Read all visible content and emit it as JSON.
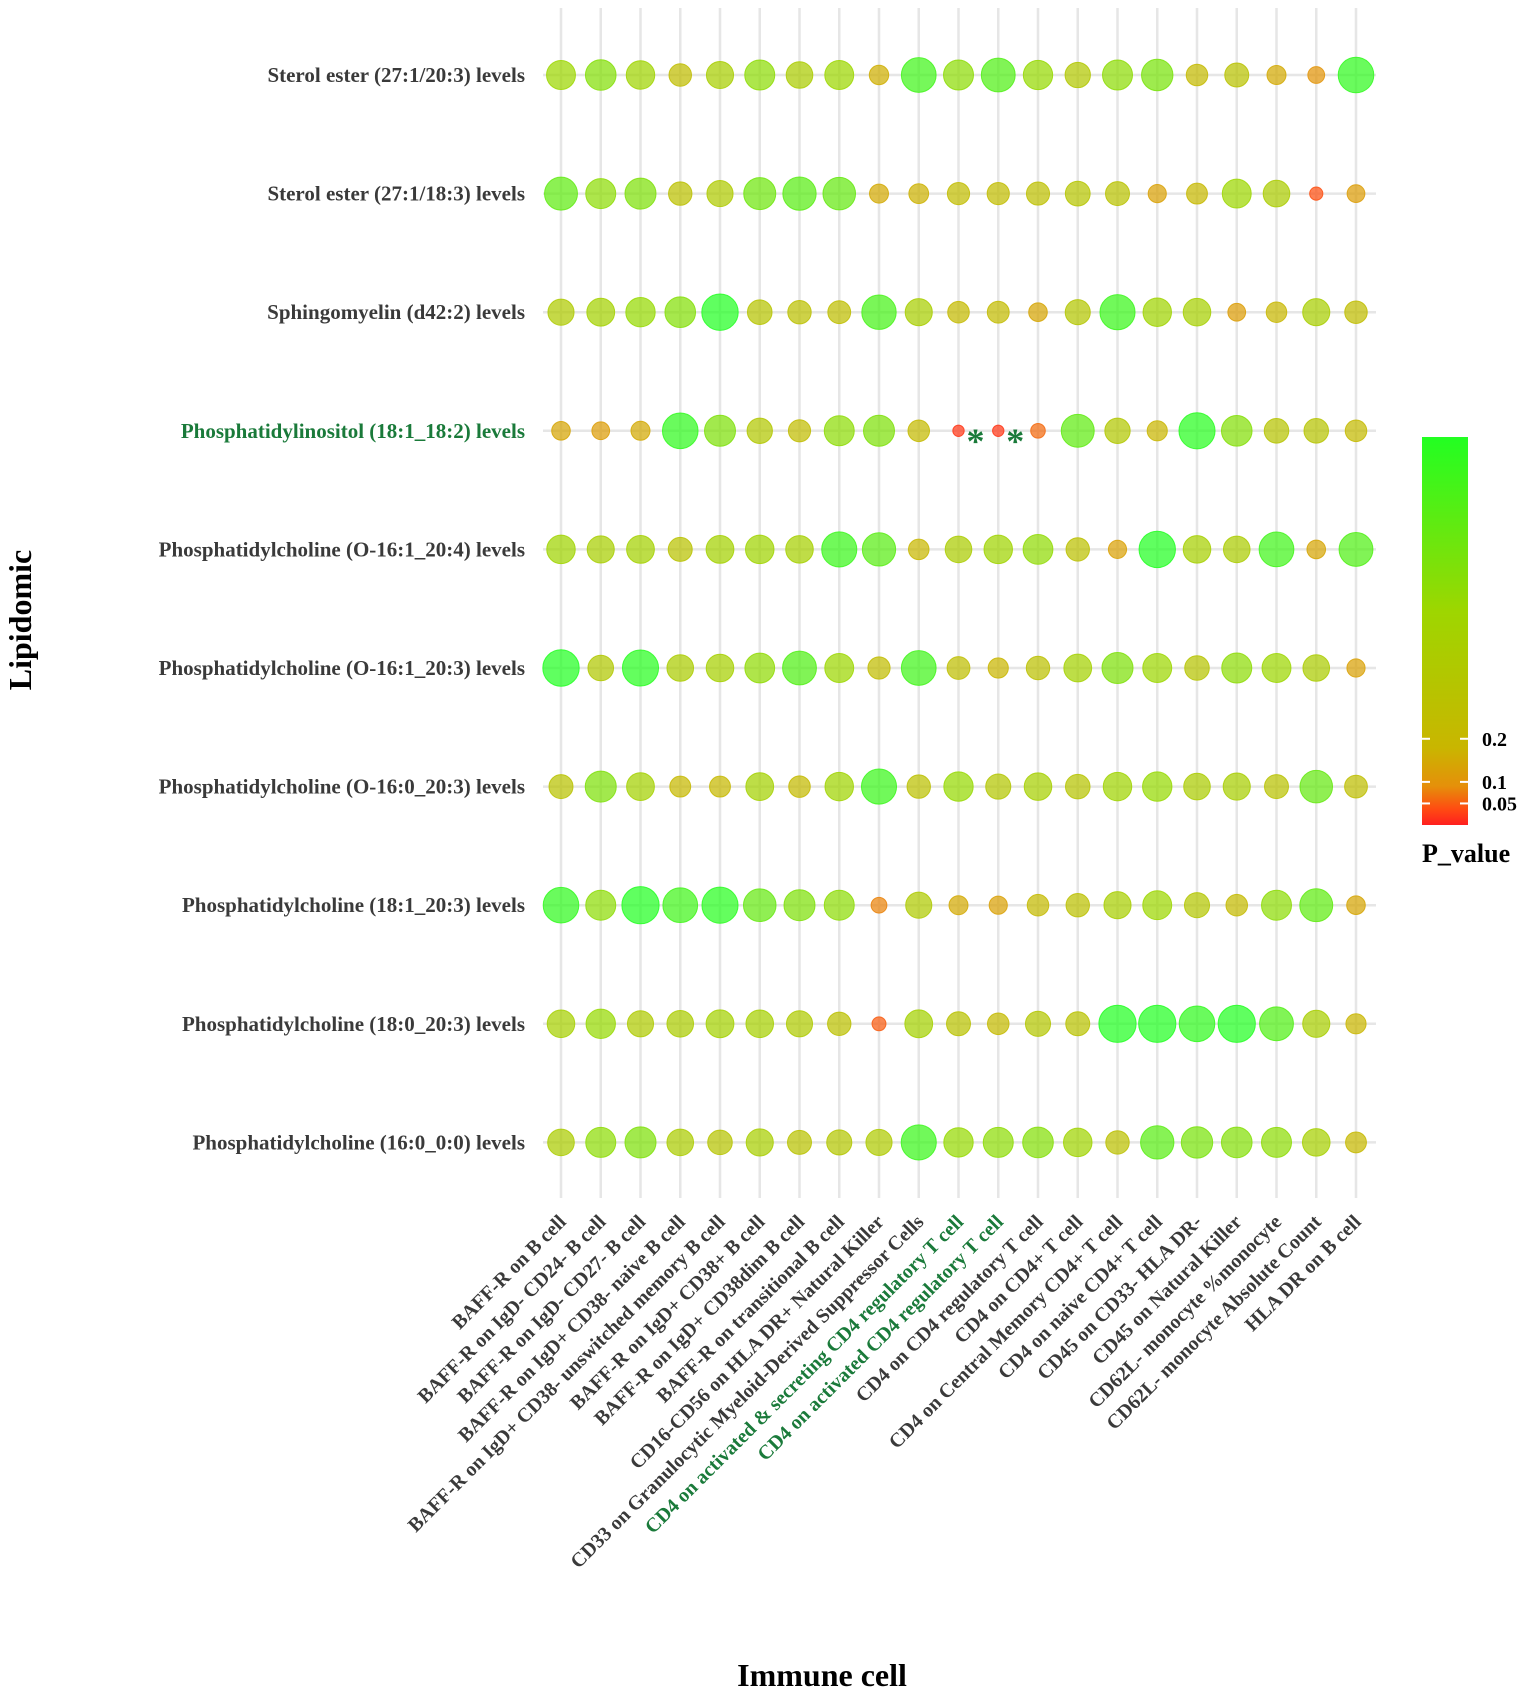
{
  "chart_data": {
    "type": "bubble",
    "xlabel": "Immune cell",
    "ylabel": "Lipidomic",
    "legend": {
      "title": "P_value",
      "ticks": [
        "0.2",
        "0.1",
        "0.05"
      ],
      "tick_values": [
        0.2,
        0.1,
        0.05
      ],
      "range": [
        0.0,
        0.9
      ],
      "colors": {
        "low": "#ff2a1a",
        "mid": "#c9b600",
        "high": "#22ff22"
      },
      "placement": "right"
    },
    "significance_marker": "*",
    "highlight_color": "#1a7a3a",
    "rows": [
      "Sterol ester (27:1/20:3) levels",
      "Sterol ester (27:1/18:3) levels",
      "Sphingomyelin (d42:2) levels",
      "Phosphatidylinositol (18:1_18:2) levels",
      "Phosphatidylcholine (O-16:1_20:4) levels",
      "Phosphatidylcholine (O-16:1_20:3) levels",
      "Phosphatidylcholine (O-16:0_20:3) levels",
      "Phosphatidylcholine (18:1_20:3) levels",
      "Phosphatidylcholine (18:0_20:3) levels",
      "Phosphatidylcholine (16:0_0:0) levels"
    ],
    "highlighted_rows": [
      "Phosphatidylinositol (18:1_18:2) levels"
    ],
    "columns": [
      "BAFF-R on B cell",
      "BAFF-R on IgD- CD24- B cell",
      "BAFF-R on IgD- CD27- B cell",
      "BAFF-R on IgD+ CD38- naive B cell",
      "BAFF-R on IgD+ CD38- unswitched memory B cell",
      "BAFF-R on IgD+ CD38+ B cell",
      "BAFF-R on IgD+ CD38dim B cell",
      "BAFF-R on transitional B cell",
      "CD16-CD56 on HLA DR+ Natural Killer",
      "CD33 on Granulocytic Myeloid-Derived Suppressor Cells",
      "CD4 on activated & secreting CD4 regulatory T cell",
      "CD4 on activated CD4 regulatory T cell",
      "CD4 on CD4 regulatory T cell",
      "CD4 on CD4+ T cell",
      "CD4 on Central Memory CD4+ T cell",
      "CD4 on naive CD4+ T cell",
      "CD45 on CD33- HLA DR-",
      "CD45 on Natural Killer",
      "CD62L- monocyte %monocyte",
      "CD62L- monocyte Absolute Count",
      "HLA DR on B cell"
    ],
    "highlighted_columns": [
      "CD4 on activated & secreting CD4 regulatory T cell",
      "CD4 on activated CD4 regulatory T cell"
    ],
    "p_values": [
      [
        0.5,
        0.58,
        0.48,
        0.25,
        0.42,
        0.55,
        0.4,
        0.5,
        0.16,
        0.8,
        0.55,
        0.75,
        0.52,
        0.35,
        0.55,
        0.62,
        0.22,
        0.3,
        0.15,
        0.1,
        0.85
      ],
      [
        0.7,
        0.55,
        0.6,
        0.28,
        0.38,
        0.65,
        0.72,
        0.68,
        0.15,
        0.17,
        0.24,
        0.24,
        0.27,
        0.33,
        0.3,
        0.13,
        0.2,
        0.5,
        0.4,
        0.04,
        0.12
      ],
      [
        0.38,
        0.45,
        0.52,
        0.58,
        0.9,
        0.32,
        0.28,
        0.26,
        0.78,
        0.42,
        0.22,
        0.23,
        0.14,
        0.34,
        0.82,
        0.48,
        0.44,
        0.12,
        0.19,
        0.42,
        0.25
      ],
      [
        0.14,
        0.12,
        0.15,
        0.85,
        0.6,
        0.35,
        0.24,
        0.55,
        0.6,
        0.22,
        0.02,
        0.02,
        0.06,
        0.7,
        0.35,
        0.18,
        0.88,
        0.58,
        0.32,
        0.32,
        0.22
      ],
      [
        0.48,
        0.42,
        0.45,
        0.3,
        0.45,
        0.48,
        0.44,
        0.82,
        0.72,
        0.19,
        0.4,
        0.48,
        0.54,
        0.28,
        0.13,
        0.9,
        0.44,
        0.4,
        0.8,
        0.14,
        0.75
      ],
      [
        0.9,
        0.36,
        0.88,
        0.4,
        0.44,
        0.54,
        0.75,
        0.5,
        0.24,
        0.8,
        0.26,
        0.18,
        0.28,
        0.45,
        0.6,
        0.5,
        0.32,
        0.55,
        0.5,
        0.4,
        0.13
      ],
      [
        0.3,
        0.6,
        0.45,
        0.2,
        0.2,
        0.45,
        0.22,
        0.48,
        0.82,
        0.28,
        0.52,
        0.34,
        0.44,
        0.32,
        0.48,
        0.52,
        0.4,
        0.42,
        0.3,
        0.68,
        0.26
      ],
      [
        0.85,
        0.55,
        0.95,
        0.8,
        0.88,
        0.68,
        0.6,
        0.55,
        0.08,
        0.38,
        0.15,
        0.13,
        0.22,
        0.28,
        0.42,
        0.5,
        0.34,
        0.22,
        0.55,
        0.7,
        0.14
      ],
      [
        0.44,
        0.52,
        0.38,
        0.4,
        0.45,
        0.44,
        0.38,
        0.28,
        0.05,
        0.45,
        0.3,
        0.22,
        0.34,
        0.3,
        0.95,
        0.95,
        0.85,
        0.95,
        0.75,
        0.42,
        0.18
      ],
      [
        0.4,
        0.55,
        0.6,
        0.4,
        0.32,
        0.42,
        0.3,
        0.34,
        0.38,
        0.82,
        0.52,
        0.55,
        0.58,
        0.48,
        0.28,
        0.72,
        0.62,
        0.58,
        0.55,
        0.44,
        0.2
      ]
    ],
    "significant_cells": [
      {
        "row": "Phosphatidylinositol (18:1_18:2) levels",
        "column": "CD4 on activated & secreting CD4 regulatory T cell"
      },
      {
        "row": "Phosphatidylinositol (18:1_18:2) levels",
        "column": "CD4 on activated CD4 regulatory T cell"
      }
    ]
  }
}
